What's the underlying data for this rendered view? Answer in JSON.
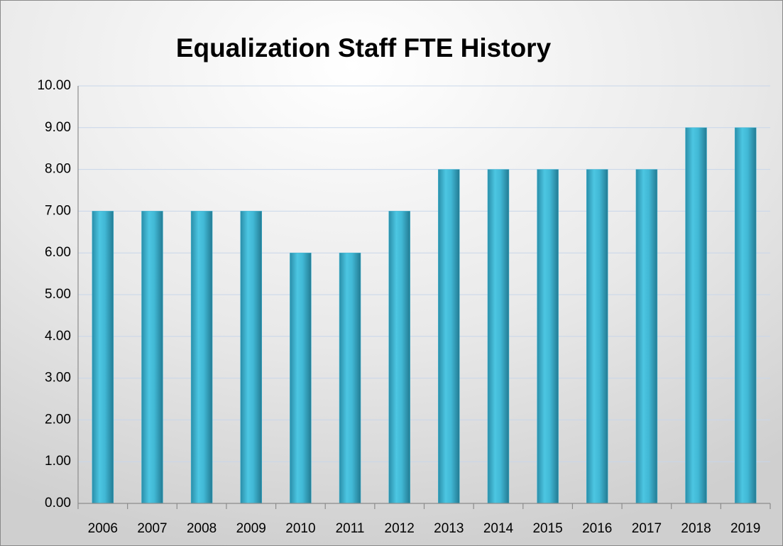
{
  "chart_data": {
    "type": "bar",
    "title": "Equalization Staff FTE History",
    "categories": [
      "2006",
      "2007",
      "2008",
      "2009",
      "2010",
      "2011",
      "2012",
      "2013",
      "2014",
      "2015",
      "2016",
      "2017",
      "2018",
      "2019"
    ],
    "values": [
      7,
      7,
      7,
      7,
      6,
      6,
      7,
      8,
      8,
      8,
      8,
      8,
      9,
      9
    ],
    "color": "#3ab3d0",
    "ylim": [
      0,
      10
    ],
    "yticks": [
      {
        "value": 0,
        "label": "0.00"
      },
      {
        "value": 1,
        "label": "1.00"
      },
      {
        "value": 2,
        "label": "2.00"
      },
      {
        "value": 3,
        "label": "3.00"
      },
      {
        "value": 4,
        "label": "4.00"
      },
      {
        "value": 5,
        "label": "5.00"
      },
      {
        "value": 6,
        "label": "6.00"
      },
      {
        "value": 7,
        "label": "7.00"
      },
      {
        "value": 8,
        "label": "8.00"
      },
      {
        "value": 9,
        "label": "9.00"
      },
      {
        "value": 10,
        "label": "10.00"
      }
    ],
    "grid": true
  }
}
